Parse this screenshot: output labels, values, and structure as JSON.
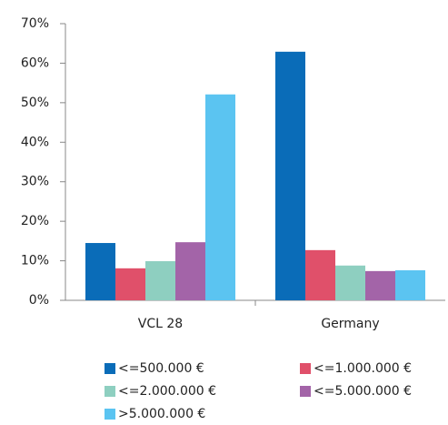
{
  "chart_data": {
    "type": "bar",
    "categories": [
      "VCL 28",
      "Germany"
    ],
    "series": [
      {
        "name": "<=500.000 €",
        "color": "#0a6cb8",
        "values": [
          14.5,
          62.9
        ]
      },
      {
        "name": "<=1.000.000 €",
        "color": "#e0506a",
        "values": [
          8.1,
          12.7
        ]
      },
      {
        "name": "<=2.000.000 €",
        "color": "#8ecfc0",
        "values": [
          9.9,
          8.8
        ]
      },
      {
        "name": "<=5.000.000 €",
        "color": "#a364a8",
        "values": [
          14.7,
          7.4
        ]
      },
      {
        "name": ">5.000.000 €",
        "color": "#5bc4f1",
        "values": [
          52.1,
          7.6
        ]
      }
    ],
    "ylim": [
      0,
      70
    ],
    "yticks": [
      {
        "value": 0,
        "label": "0%"
      },
      {
        "value": 10,
        "label": "10%"
      },
      {
        "value": 20,
        "label": "20%"
      },
      {
        "value": 30,
        "label": "30%"
      },
      {
        "value": 40,
        "label": "40%"
      },
      {
        "value": 50,
        "label": "50%"
      },
      {
        "value": 60,
        "label": "60%"
      },
      {
        "value": 70,
        "label": "70%"
      }
    ],
    "grid": false
  }
}
